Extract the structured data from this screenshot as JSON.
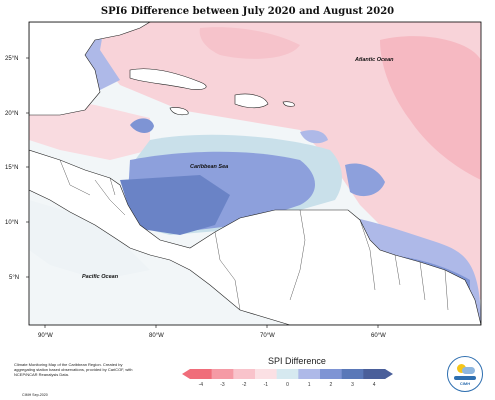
{
  "title": "SPI6 Difference between July 2020 and August 2020",
  "labels": {
    "atlantic": "Atlantic Ocean",
    "caribbean": "Caribbean Sea",
    "pacific": "Pacific Ocean"
  },
  "lat_ticks": [
    "25°N",
    "20°N",
    "15°N",
    "10°N",
    "5°N"
  ],
  "lon_ticks": [
    "90°W",
    "80°W",
    "70°W",
    "60°W"
  ],
  "colorbar": {
    "title": "SPI Difference",
    "ticks": [
      "-4",
      "-3",
      "-2",
      "-1",
      "0",
      "1",
      "2",
      "3",
      "4"
    ],
    "colors": [
      "#f06d7a",
      "#f59aa5",
      "#f9c3cb",
      "#fbe0e4",
      "#d6e9f0",
      "#aeb9e8",
      "#7e94d4",
      "#5a78b8",
      "#4a5f9a"
    ]
  },
  "note": "Climate Monitoring Map of the Caribbean Region. Created by aggregating station based observations, provided by CariCOF, with NCEP/NCAR Reanalysis Data.",
  "credit": "CIMH Sep-2020",
  "logo_text": "CIMH"
}
